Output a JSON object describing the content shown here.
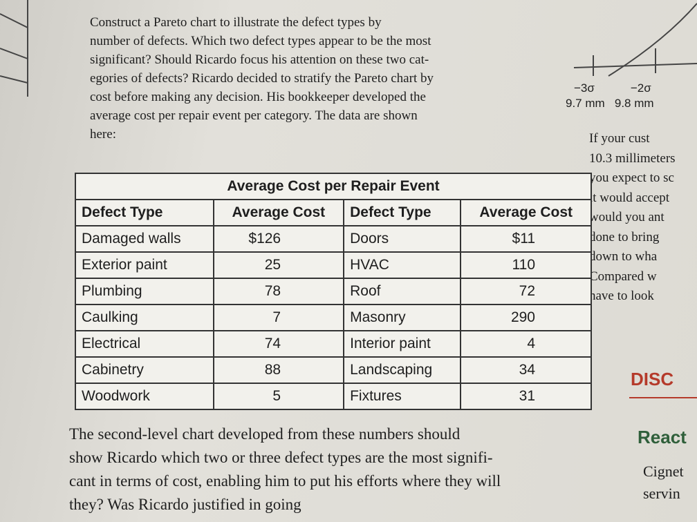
{
  "intro": {
    "lines": [
      "Construct a Pareto chart to illustrate the defect types by",
      "number of defects. Which two defect types appear to be the most",
      "significant? Should Ricardo focus his attention on these two cat-",
      "egories of defects? Ricardo decided to stratify the Pareto chart by",
      "cost before making any decision. His bookkeeper developed the",
      "average cost per repair event per category. The data are shown",
      "here:"
    ]
  },
  "figure": {
    "labels": [
      "−3σ",
      "−2σ"
    ],
    "values": [
      "9.7 mm",
      "9.8 mm"
    ]
  },
  "sidebar": {
    "lines": [
      "If your cust",
      "10.3 millimeters",
      "you expect to sc",
      "it would accept",
      "would you ant",
      "done to bring",
      "down to wha",
      "Compared w",
      "have to look"
    ],
    "heading": "DISC",
    "subheading": "React",
    "body": [
      "Cignet",
      "servin"
    ]
  },
  "table": {
    "title": "Average Cost per Repair Event",
    "header": [
      "Defect Type",
      "Average Cost",
      "Defect Type",
      "Average Cost"
    ],
    "rows": [
      [
        "Damaged walls",
        "$126",
        "Doors",
        "$11"
      ],
      [
        "Exterior paint",
        "25",
        "HVAC",
        "110"
      ],
      [
        "Plumbing",
        "78",
        "Roof",
        "72"
      ],
      [
        "Caulking",
        "7",
        "Masonry",
        "290"
      ],
      [
        "Electrical",
        "74",
        "Interior paint",
        "4"
      ],
      [
        "Cabinetry",
        "88",
        "Landscaping",
        "34"
      ],
      [
        "Woodwork",
        "5",
        "Fixtures",
        "31"
      ]
    ]
  },
  "outro": {
    "lines": [
      "The second-level chart developed from these numbers should",
      "show Ricardo which two or three defect types are the most signifi-",
      "cant in terms of cost, enabling him to put his efforts where they will",
      "they? Was Ricardo justified in going"
    ]
  }
}
